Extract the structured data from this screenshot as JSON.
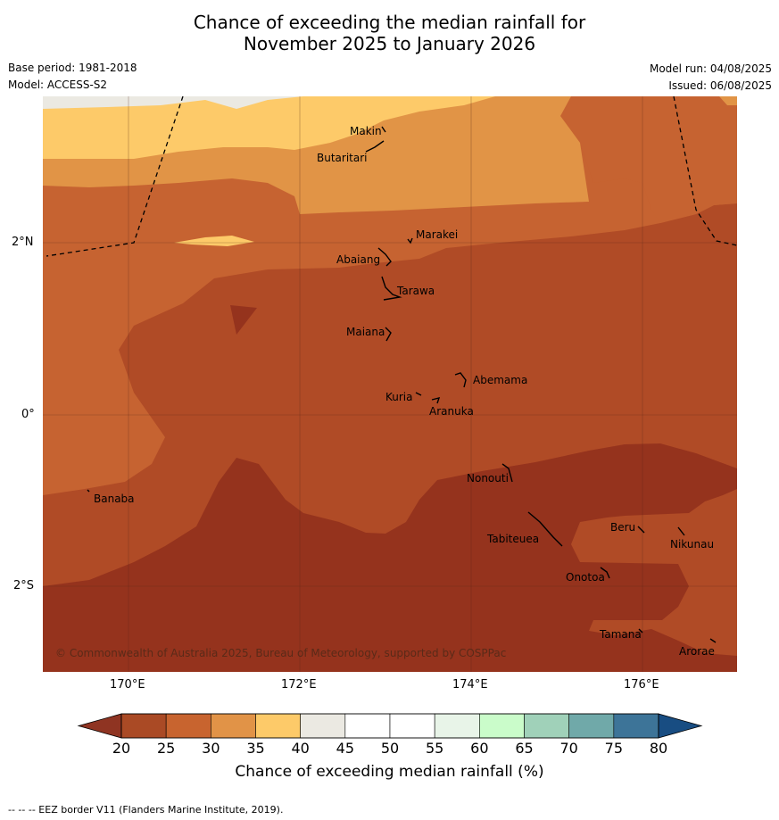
{
  "title": {
    "line1": "Chance of exceeding the median rainfall for",
    "line2": "November 2025 to January 2026"
  },
  "meta": {
    "base_period": "Base period: 1981-2018",
    "model": "Model: ACCESS-S2",
    "model_run": "Model run: 04/08/2025",
    "issued": "Issued: 06/08/2025"
  },
  "map": {
    "copyright": "© Commonwealth of Australia 2025, Bureau of Meteorology, supported by COSPPac",
    "longitude_ticks": [
      "170°E",
      "172°E",
      "174°E",
      "176°E"
    ],
    "latitude_ticks": [
      "2°N",
      "0°",
      "2°S"
    ],
    "islands": [
      "Makin",
      "Butaritari",
      "Marakei",
      "Abaiang",
      "Tarawa",
      "Maiana",
      "Abemama",
      "Kuria",
      "Aranuka",
      "Nonouti",
      "Banaba",
      "Tabiteuea",
      "Beru",
      "Nikunau",
      "Onotoa",
      "Tamana",
      "Arorae"
    ]
  },
  "colorbar": {
    "ticks": [
      "20",
      "25",
      "30",
      "35",
      "40",
      "45",
      "50",
      "55",
      "60",
      "65",
      "70",
      "75",
      "80"
    ],
    "colors": [
      "#aa4a25",
      "#c8642f",
      "#e19347",
      "#fdca69",
      "#ebe9e2",
      "#ffffff",
      "#ffffff",
      "#e8f4e8",
      "#cafcca",
      "#a0d1b9",
      "#70a9a9",
      "#3d7498"
    ],
    "low_color": "#8f3422",
    "high_color": "#184d82",
    "label": "Chance of exceeding median rainfall (%)"
  },
  "legend_colors": {
    "band_below_20": "#95331d",
    "band_20_25": "#b04b26",
    "band_25_30": "#c66331",
    "band_30_35": "#e19446",
    "band_35_40": "#fdca69",
    "band_40_45": "#ebe9e2"
  },
  "footer": "--  --  -- EEZ border V11 (Flanders Marine Institute, 2019)."
}
